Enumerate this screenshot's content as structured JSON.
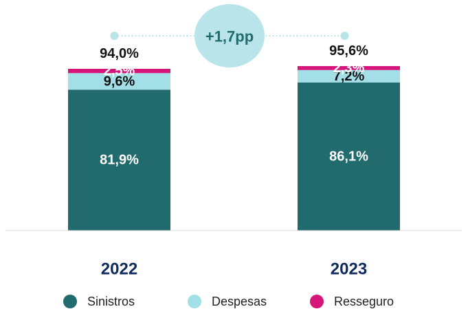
{
  "chart_data": {
    "type": "bar",
    "stacked": true,
    "categories": [
      "2022",
      "2023"
    ],
    "series": [
      {
        "name": "Sinistros",
        "values": [
          81.9,
          86.1
        ],
        "labels": [
          "81,9%",
          "86,1%"
        ],
        "color": "#216a6e",
        "label_color": "#ffffff"
      },
      {
        "name": "Despesas",
        "values": [
          9.6,
          7.2
        ],
        "labels": [
          "9,6%",
          "7,2%"
        ],
        "color": "#a3dfe6",
        "label_color": "#111111"
      },
      {
        "name": "Resseguro",
        "values": [
          2.5,
          2.3
        ],
        "labels": [
          "2,5%",
          "2,3%"
        ],
        "color": "#d6157b",
        "label_color": "#ffffff"
      }
    ],
    "totals": [
      94.0,
      95.6
    ],
    "total_labels": [
      "94,0%",
      "95,6%"
    ],
    "delta_label": "+1,7pp",
    "delta_color": "#b9e4ea",
    "ylim": [
      0,
      100
    ],
    "legend_position": "bottom",
    "grid": false,
    "baseline_color": "#d8d8d8"
  }
}
